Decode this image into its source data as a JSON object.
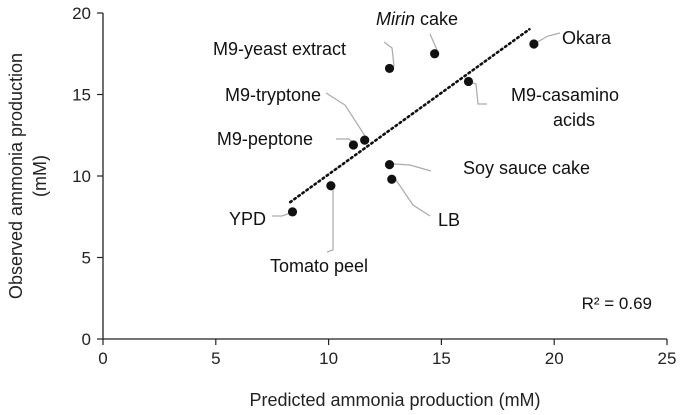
{
  "chart_data": {
    "type": "scatter",
    "xlabel": "Predicted ammonia production (mM)",
    "ylabel": "Observed ammonia production (mM)",
    "xlim": [
      0,
      25
    ],
    "ylim": [
      0,
      20
    ],
    "x_ticks": [
      "0",
      "5",
      "10",
      "15",
      "20",
      "25"
    ],
    "y_ticks": [
      "0",
      "5",
      "10",
      "15",
      "20"
    ],
    "grid": false,
    "annotation": "R² = 0.69",
    "points": [
      {
        "label": "Okara",
        "x": 19.1,
        "y": 18.1
      },
      {
        "label_italic": "Mirin",
        "label": " cake",
        "x": 14.7,
        "y": 17.5
      },
      {
        "label": "M9-yeast extract",
        "x": 12.7,
        "y": 16.6
      },
      {
        "label": "M9-casamino",
        "label2": "acids",
        "x": 16.2,
        "y": 15.8
      },
      {
        "label": "M9-tryptone",
        "x": 11.6,
        "y": 12.2
      },
      {
        "label": "M9-peptone",
        "x": 11.1,
        "y": 11.9
      },
      {
        "label": "Soy sauce cake",
        "x": 12.7,
        "y": 10.7
      },
      {
        "label": "LB",
        "x": 12.8,
        "y": 9.8
      },
      {
        "label": "Tomato peel",
        "x": 10.1,
        "y": 9.4
      },
      {
        "label": "YPD",
        "x": 8.4,
        "y": 7.8
      }
    ],
    "trendline": {
      "style": "dotted",
      "x": [
        8.3,
        18.9
      ],
      "y": [
        8.4,
        19.0
      ]
    }
  }
}
